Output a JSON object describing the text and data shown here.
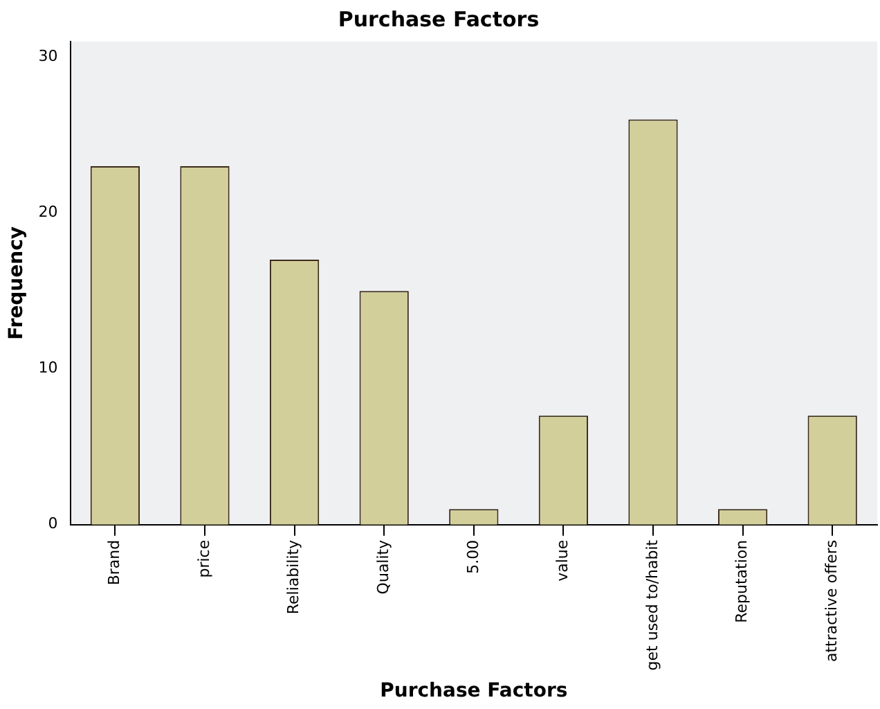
{
  "chart_data": {
    "type": "bar",
    "title": "Purchase Factors",
    "xlabel": "Purchase Factors",
    "ylabel": "Frequency",
    "categories": [
      "Brand",
      "price",
      "Reliability",
      "Quality",
      "5.00",
      "value",
      "get used to/habit",
      "Reputation",
      "attractive offers"
    ],
    "values": [
      23,
      23,
      17,
      15,
      1,
      7,
      26,
      1,
      7
    ],
    "color": "#d3cf9b",
    "ylim": [
      0,
      31
    ],
    "yticks": [
      0,
      10,
      20,
      30
    ],
    "grid": false,
    "legend": false
  }
}
